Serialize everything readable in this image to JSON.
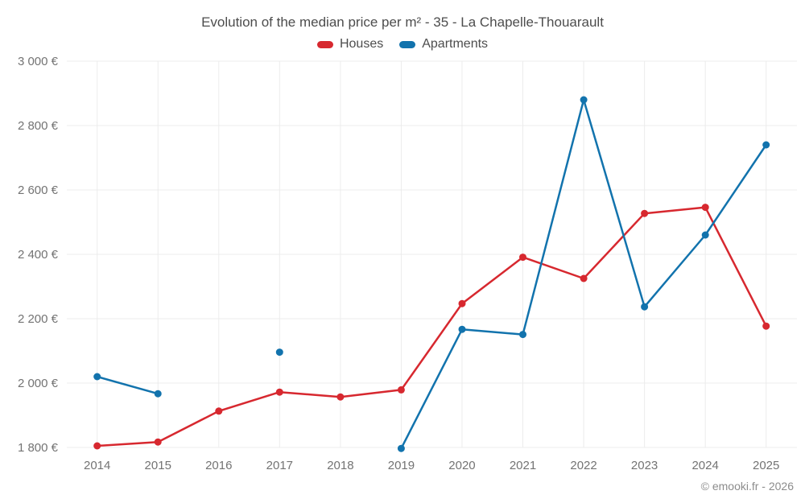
{
  "title": "Evolution of the median price per m² - 35 - La Chapelle-Thouarault",
  "footer": "© emooki.fr - 2026",
  "legend": {
    "houses_label": "Houses",
    "apartments_label": "Apartments"
  },
  "colors": {
    "houses": "#d7282f",
    "apartments": "#1273ad",
    "grid": "#ececec",
    "tick_text": "#737373",
    "title_text": "#4d4d4d",
    "footer_text": "#8c8c8c"
  },
  "chart_data": {
    "type": "line",
    "title": "Evolution of the median price per m² - 35 - La Chapelle-Thouarault",
    "categories": [
      "2014",
      "2015",
      "2016",
      "2017",
      "2018",
      "2019",
      "2020",
      "2021",
      "2022",
      "2023",
      "2024",
      "2025"
    ],
    "series": [
      {
        "name": "Houses",
        "color": "#d7282f",
        "values": [
          1805,
          1817,
          1913,
          1972,
          1957,
          1979,
          2247,
          2391,
          2325,
          2527,
          2546,
          2177
        ]
      },
      {
        "name": "Apartments",
        "color": "#1273ad",
        "values": [
          2020,
          1967,
          null,
          2096,
          null,
          1797,
          2167,
          2151,
          2880,
          2237,
          2460,
          2740
        ]
      }
    ],
    "xlabel": "",
    "ylabel": "",
    "ylim": [
      1800,
      3000
    ],
    "yticks": [
      1800,
      2000,
      2200,
      2400,
      2600,
      2800,
      3000
    ],
    "ytick_labels": [
      "1 800 €",
      "2 000 €",
      "2 200 €",
      "2 400 €",
      "2 600 €",
      "2 800 €",
      "3 000 €"
    ],
    "grid": true,
    "legend_position": "top",
    "unit": "€"
  }
}
